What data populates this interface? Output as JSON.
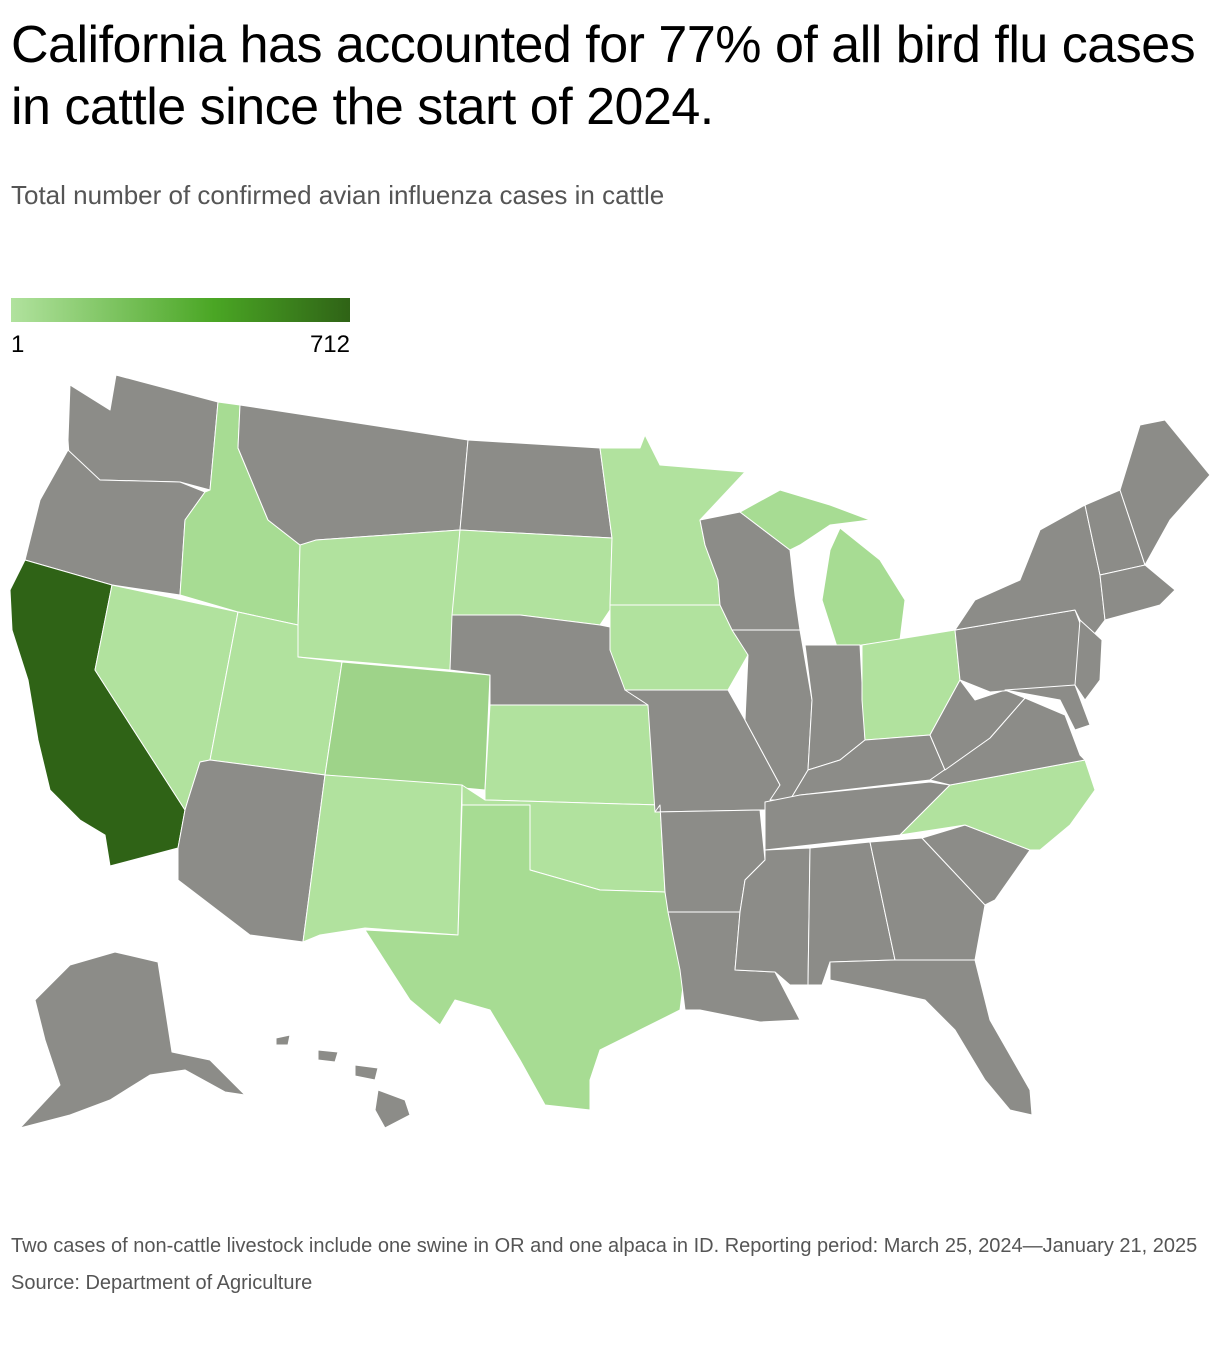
{
  "header": {
    "title": "California has accounted for 77% of all bird flu cases in cattle since the start of 2024.",
    "subtitle": "Total number of confirmed avian influenza cases in cattle"
  },
  "legend": {
    "min_label": "1",
    "max_label": "712"
  },
  "colors": {
    "no_cases": "#8c8c88",
    "scale_low": "#b1e29e",
    "scale_mid": "#4aa624",
    "scale_high": "#2f6316",
    "state_border": "#ffffff"
  },
  "footnote": {
    "note": "Two cases of non-cattle livestock include one swine in OR and one alpaca in ID. Reporting period: March 25, 2024—January 21, 2025",
    "source": "Source: Department of Agriculture"
  }
}
